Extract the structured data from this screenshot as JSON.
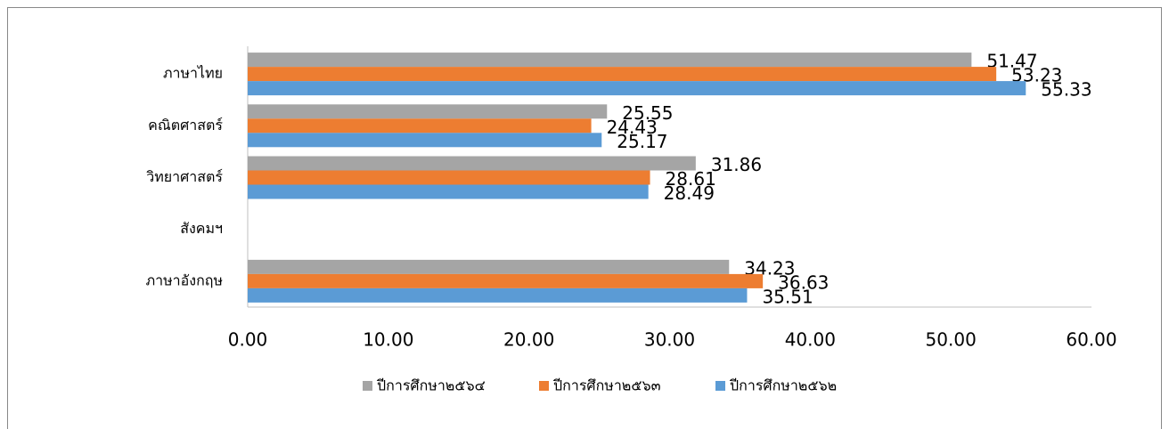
{
  "chart_data": {
    "type": "bar",
    "orientation": "horizontal",
    "categories": [
      "ภาษาไทย",
      "คณิตศาสตร์",
      "วิทยาศาสตร์",
      "สังคมฯ",
      "ภาษาอังกฤษ"
    ],
    "series": [
      {
        "name": "ปีการศึกษา๒๕๖๔",
        "color": "#a5a5a5",
        "values": [
          51.47,
          25.55,
          31.86,
          null,
          34.23
        ]
      },
      {
        "name": "ปีการศึกษา๒๕๖๓",
        "color": "#ed7d31",
        "values": [
          53.23,
          24.43,
          28.61,
          null,
          36.63
        ]
      },
      {
        "name": "ปีการศึกษา๒๕๖๒",
        "color": "#5b9bd5",
        "values": [
          55.33,
          25.17,
          28.49,
          null,
          35.51
        ]
      }
    ],
    "xlim": [
      0,
      60
    ],
    "xticks": [
      {
        "value": 0,
        "label": "0.00"
      },
      {
        "value": 10,
        "label": "10.00"
      },
      {
        "value": 20,
        "label": "20.00"
      },
      {
        "value": 30,
        "label": "30.00"
      },
      {
        "value": 40,
        "label": "40.00"
      },
      {
        "value": 50,
        "label": "50.00"
      },
      {
        "value": 60,
        "label": "60.00"
      }
    ],
    "grid": false,
    "legend": "bottom"
  }
}
